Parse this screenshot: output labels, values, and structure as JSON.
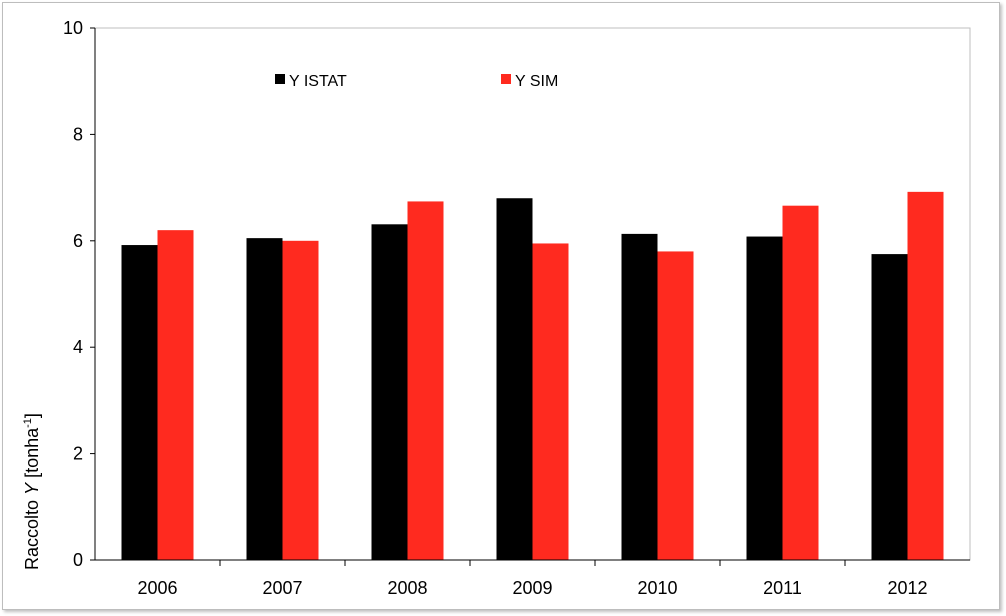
{
  "chart_data": {
    "type": "bar",
    "categories": [
      "2006",
      "2007",
      "2008",
      "2009",
      "2010",
      "2011",
      "2012"
    ],
    "series": [
      {
        "name": "Y ISTAT",
        "color": "#000000",
        "values": [
          5.92,
          6.05,
          6.31,
          6.8,
          6.13,
          6.08,
          5.75
        ]
      },
      {
        "name": "Y SIM",
        "color": "#ff2a1f",
        "values": [
          6.2,
          6.0,
          6.74,
          5.95,
          5.8,
          6.66,
          6.92
        ]
      }
    ],
    "ylim": [
      0,
      10
    ],
    "yticks": [
      "0",
      "2",
      "4",
      "6",
      "8",
      "10"
    ],
    "ylabel": {
      "prefix": "Raccolto ",
      "var": "Y",
      "unit_open": " [tonha",
      "unit_sup": "-1",
      "unit_close": "]"
    },
    "xlabel": "",
    "grid": false,
    "legend_position": "top-left"
  }
}
